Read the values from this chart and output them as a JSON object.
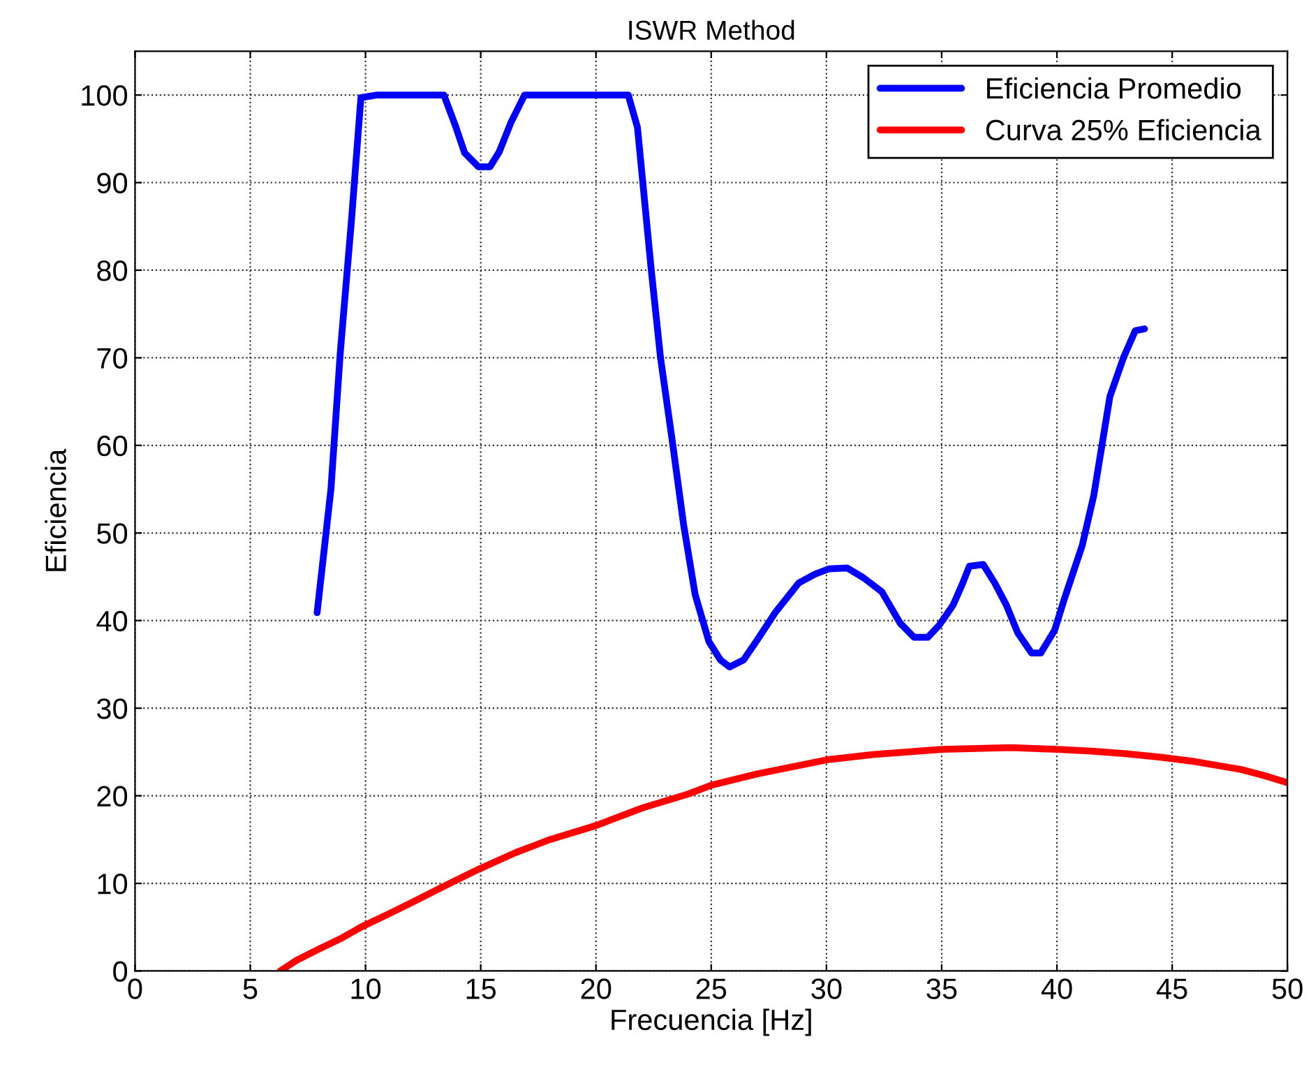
{
  "chart_data": {
    "type": "line",
    "title": "ISWR Method",
    "xlabel": "Frecuencia [Hz]",
    "ylabel": "Eficiencia",
    "xlim": [
      0,
      50
    ],
    "xticks": [
      0,
      5,
      10,
      15,
      20,
      25,
      30,
      35,
      40,
      45,
      50
    ],
    "ylim": [
      0,
      105
    ],
    "yticks": [
      0,
      10,
      20,
      30,
      40,
      50,
      60,
      70,
      80,
      90,
      100
    ],
    "grid": true,
    "legend": "top right",
    "line_style": "solid",
    "marker": "none",
    "series": [
      {
        "name": "Eficiencia Promedio",
        "color": "#0000ff",
        "x": [
          7.9,
          8.5,
          8.9,
          9.4,
          9.8,
          10.5,
          11.5,
          12.5,
          13.4,
          13.9,
          14.3,
          14.9,
          15.4,
          15.8,
          16.3,
          16.9,
          18,
          19,
          20,
          21.4,
          21.8,
          22.4,
          22.8,
          23.3,
          23.8,
          24.3,
          24.9,
          25.4,
          25.8,
          26.4,
          27,
          27.8,
          28.8,
          29.5,
          30.1,
          30.9,
          31.6,
          32.4,
          33.2,
          33.8,
          34.4,
          34.9,
          35.5,
          35.9,
          36.2,
          36.8,
          37.3,
          37.8,
          38.3,
          38.9,
          39.3,
          39.9,
          40.3,
          41.1,
          41.6,
          42.3,
          42.9,
          43.4,
          43.8
        ],
        "values": [
          40.9,
          55,
          70.4,
          86,
          99.7,
          100,
          100,
          100,
          100,
          96.5,
          93.4,
          91.8,
          91.8,
          93.5,
          96.8,
          100,
          100,
          100,
          100,
          100,
          96.3,
          80,
          70,
          60.7,
          51,
          43,
          37.6,
          35.5,
          34.7,
          35.5,
          37.8,
          41,
          44.3,
          45.3,
          45.9,
          46,
          44.9,
          43.3,
          39.7,
          38.1,
          38.1,
          39.5,
          41.8,
          44.2,
          46.2,
          46.4,
          44.3,
          41.8,
          38.6,
          36.3,
          36.3,
          38.9,
          42.3,
          48.6,
          54.3,
          65.6,
          70.1,
          73.1,
          73.3
        ]
      },
      {
        "name": "Curva 25% Eficiencia",
        "color": "#ff0000",
        "x": [
          6.3,
          7,
          7.9,
          9,
          9.8,
          11,
          12,
          13.5,
          14.9,
          16.5,
          18,
          20,
          22,
          24,
          25,
          27,
          28.5,
          30,
          32,
          34,
          35,
          36.5,
          38,
          39,
          40,
          41.5,
          43,
          44.5,
          46,
          48,
          49,
          50
        ],
        "values": [
          0,
          1.2,
          2.4,
          3.8,
          5,
          6.5,
          7.8,
          9.8,
          11.6,
          13.5,
          15,
          16.6,
          18.6,
          20.2,
          21.2,
          22.5,
          23.3,
          24.1,
          24.7,
          25.1,
          25.3,
          25.4,
          25.5,
          25.4,
          25.3,
          25.1,
          24.8,
          24.4,
          23.9,
          23,
          22.3,
          21.5
        ]
      }
    ]
  }
}
